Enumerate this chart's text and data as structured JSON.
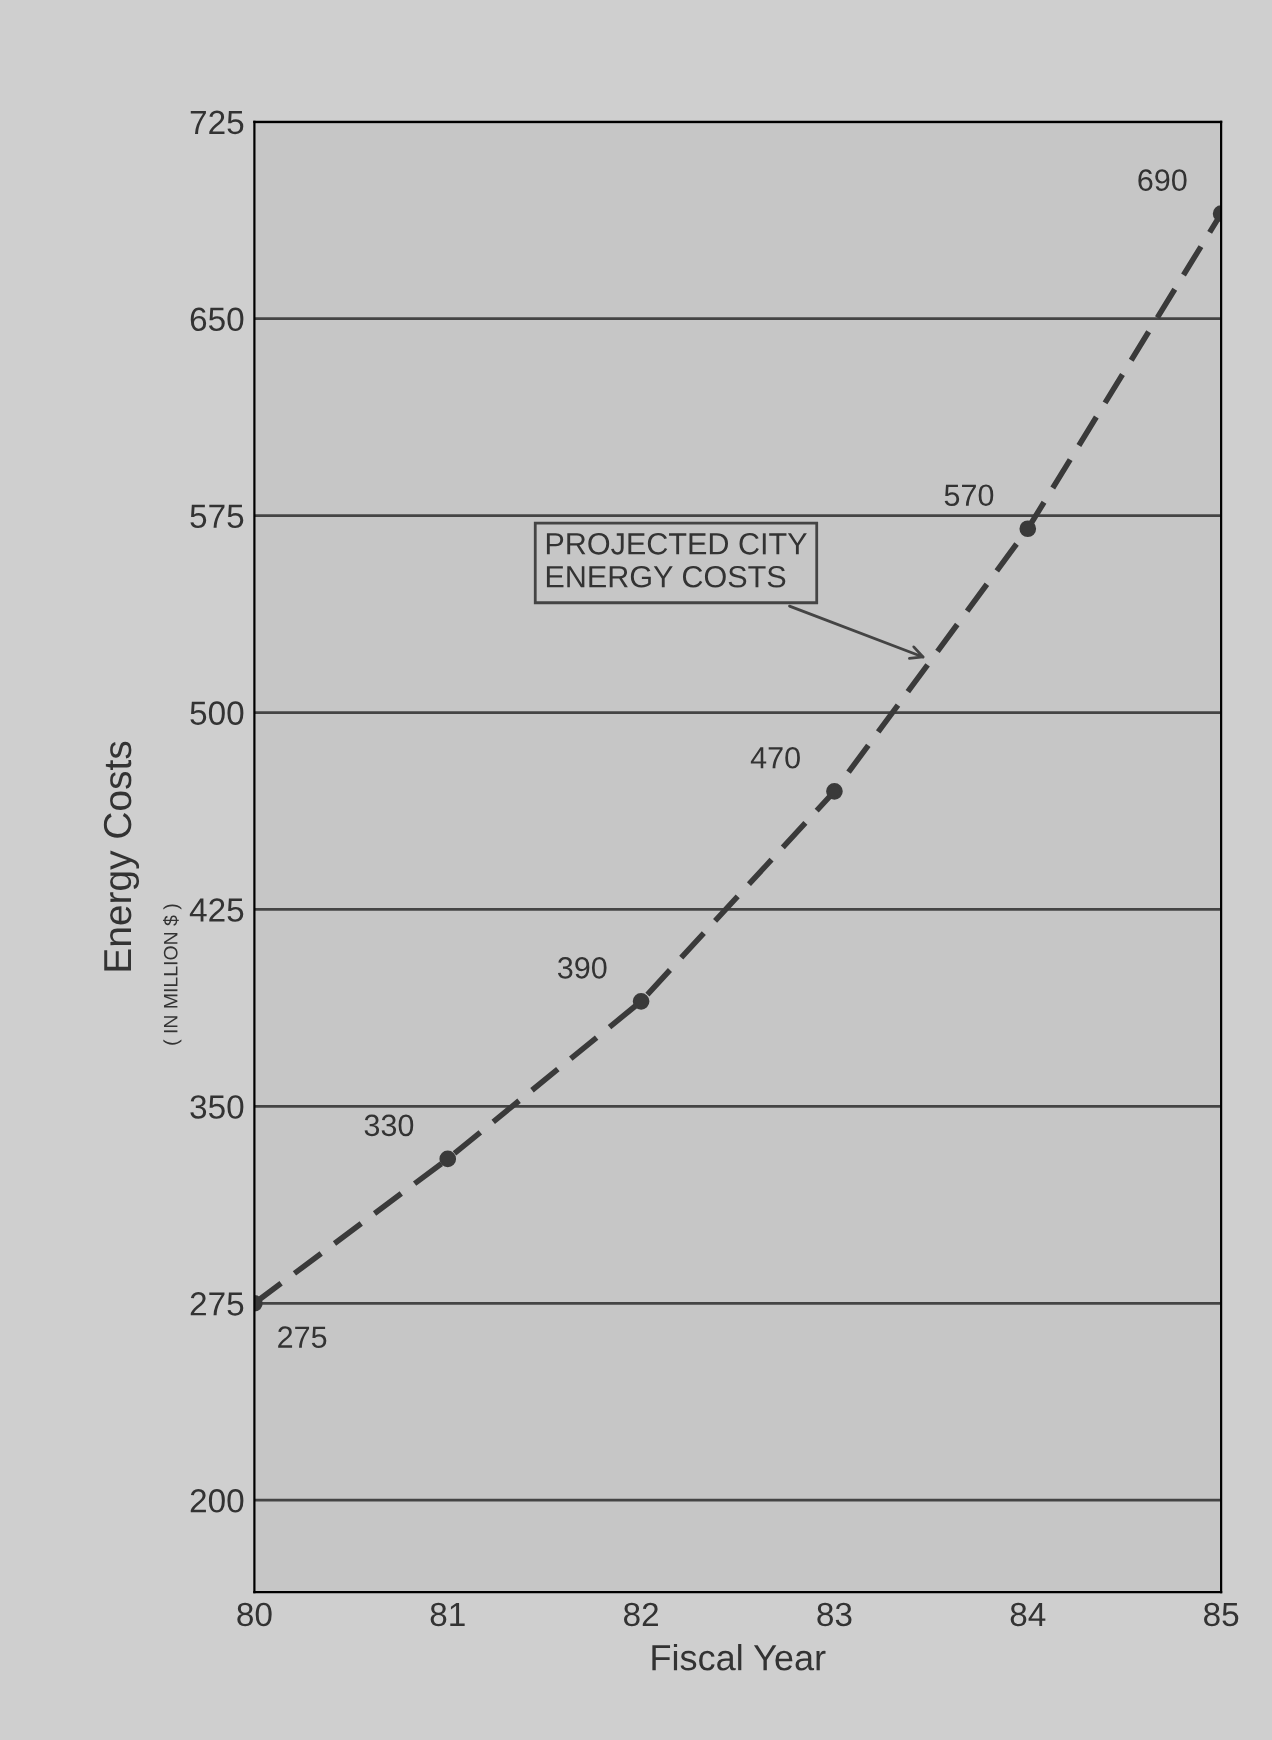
{
  "chart_data": {
    "type": "line",
    "xlabel": "Fiscal Year",
    "ylabel": "Energy Costs",
    "annotations": [
      {
        "text": "PROJECTED CITY\nENERGY COSTS",
        "x": 83.5,
        "y": 520
      },
      "( IN MILLION $ )"
    ],
    "x": [
      80,
      81,
      82,
      83,
      84,
      85
    ],
    "series": [
      {
        "color": "#3a3a3a",
        "values": [
          275,
          330,
          390,
          470,
          570,
          690
        ]
      }
    ],
    "data_labels": true,
    "xlim": [
      80,
      85
    ],
    "xticks": [
      80,
      81,
      82,
      83,
      84,
      85
    ],
    "ylim": [
      165,
      725
    ],
    "yticks": [
      200,
      275,
      350,
      425,
      500,
      575,
      650,
      725
    ],
    "grid": "y",
    "marker": "circle",
    "line_style": "dashed"
  }
}
